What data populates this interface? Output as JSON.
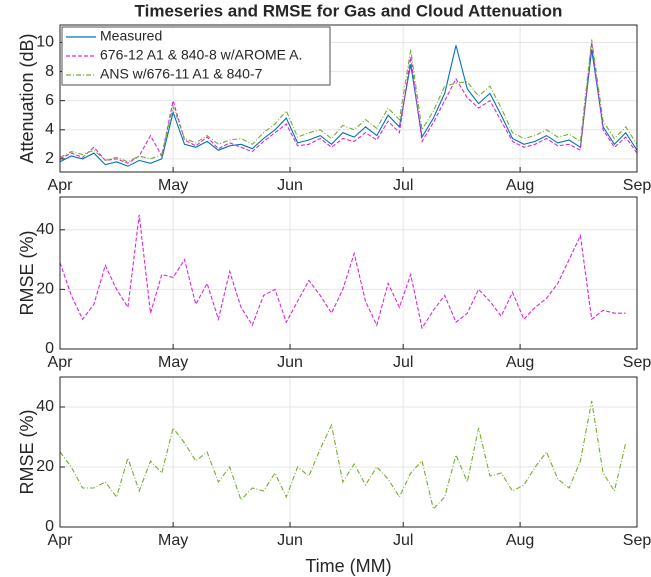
{
  "chart_data": [
    {
      "type": "line",
      "title": "Timeseries and RMSE for Gas and Cloud Attenuation",
      "y_label": "Attenuation (dB)",
      "xlim": [
        0,
        153
      ],
      "xticks": [
        {
          "value": 0,
          "label": "Apr"
        },
        {
          "value": 30,
          "label": "May"
        },
        {
          "value": 61,
          "label": "Jun"
        },
        {
          "value": 91,
          "label": "Jul"
        },
        {
          "value": 122,
          "label": "Aug"
        },
        {
          "value": 153,
          "label": "Sep"
        }
      ],
      "ylim": [
        1.1,
        11.2
      ],
      "yticks": [
        2,
        4,
        6,
        8,
        10
      ],
      "grid": true,
      "legend": "upper-left",
      "x": [
        0,
        3,
        6,
        9,
        12,
        15,
        18,
        21,
        24,
        27,
        30,
        33,
        36,
        39,
        42,
        45,
        48,
        51,
        54,
        57,
        60,
        63,
        66,
        69,
        72,
        75,
        78,
        81,
        84,
        87,
        90,
        93,
        96,
        99,
        102,
        105,
        108,
        111,
        114,
        117,
        120,
        123,
        126,
        129,
        132,
        135,
        138,
        141,
        144,
        147,
        150,
        153
      ],
      "series": [
        {
          "name": "Measured",
          "color": "#0072bd",
          "dash": "solid",
          "values": [
            1.8,
            2.2,
            2.0,
            2.4,
            1.6,
            1.8,
            1.5,
            1.9,
            1.7,
            2.0,
            5.2,
            3.0,
            2.8,
            3.2,
            2.6,
            2.9,
            3.0,
            2.7,
            3.4,
            4.0,
            4.8,
            3.1,
            3.3,
            3.6,
            3.0,
            3.8,
            3.5,
            4.2,
            3.6,
            5.0,
            4.2,
            8.5,
            3.5,
            4.8,
            6.5,
            9.8,
            6.8,
            5.8,
            6.5,
            5.0,
            3.4,
            3.0,
            3.2,
            3.6,
            3.1,
            3.3,
            2.8,
            9.5,
            4.2,
            3.0,
            3.8,
            2.6
          ]
        },
        {
          "name": "676-12 A1 & 840-8 w/AROME A.",
          "color": "#d926d9",
          "dash": "dashed",
          "values": [
            2.0,
            2.4,
            2.1,
            2.8,
            1.9,
            2.0,
            1.7,
            2.2,
            3.6,
            2.2,
            6.0,
            3.3,
            2.9,
            3.5,
            2.7,
            3.1,
            2.8,
            2.5,
            3.2,
            3.8,
            4.4,
            2.9,
            3.0,
            3.4,
            2.8,
            3.4,
            3.2,
            3.8,
            3.3,
            4.6,
            3.8,
            9.0,
            3.2,
            4.5,
            6.0,
            7.5,
            6.2,
            5.5,
            6.0,
            4.6,
            3.2,
            2.8,
            3.0,
            3.4,
            2.9,
            3.0,
            2.6,
            10.0,
            4.0,
            2.8,
            3.5,
            2.4
          ]
        },
        {
          "name": "ANS w/676-11 A1 & 840-7",
          "color": "#77ac30",
          "dash": "dashdot",
          "values": [
            2.1,
            2.5,
            2.3,
            2.6,
            1.9,
            2.1,
            1.8,
            2.2,
            2.0,
            2.3,
            5.6,
            3.4,
            3.1,
            3.6,
            3.0,
            3.3,
            3.4,
            3.0,
            3.8,
            4.4,
            5.3,
            3.5,
            3.8,
            4.0,
            3.4,
            4.3,
            4.0,
            4.7,
            4.1,
            5.5,
            4.7,
            9.5,
            4.0,
            5.3,
            7.0,
            7.2,
            7.3,
            6.3,
            7.0,
            5.5,
            3.8,
            3.4,
            3.6,
            4.0,
            3.5,
            3.7,
            3.2,
            10.2,
            4.6,
            3.4,
            4.2,
            3.0
          ]
        }
      ]
    },
    {
      "type": "line",
      "y_label": "RMSE (%)",
      "xlim": [
        0,
        153
      ],
      "xticks": [
        {
          "value": 0,
          "label": "Apr"
        },
        {
          "value": 30,
          "label": "May"
        },
        {
          "value": 61,
          "label": "Jun"
        },
        {
          "value": 91,
          "label": "Jul"
        },
        {
          "value": 122,
          "label": "Aug"
        },
        {
          "value": 153,
          "label": "Sep"
        }
      ],
      "ylim": [
        0,
        51
      ],
      "yticks": [
        0,
        20,
        40
      ],
      "grid": true,
      "x": [
        0,
        3,
        6,
        9,
        12,
        15,
        18,
        21,
        24,
        27,
        30,
        33,
        36,
        39,
        42,
        45,
        48,
        51,
        54,
        57,
        60,
        63,
        66,
        69,
        72,
        75,
        78,
        81,
        84,
        87,
        90,
        93,
        96,
        99,
        102,
        105,
        108,
        111,
        114,
        117,
        120,
        123,
        126,
        129,
        132,
        135,
        138,
        141,
        144,
        147,
        150
      ],
      "series": [
        {
          "name": "676-12 A1 & 840-8 w/AROME A.",
          "color": "#d926d9",
          "dash": "dashed",
          "values": [
            29,
            18,
            10,
            15,
            28,
            20,
            14,
            45,
            12,
            25,
            24,
            30,
            15,
            22,
            10,
            26,
            14,
            8,
            18,
            20,
            9,
            16,
            23,
            18,
            12,
            20,
            32,
            16,
            8,
            22,
            14,
            25,
            7,
            13,
            18,
            9,
            12,
            20,
            16,
            11,
            19,
            10,
            14,
            17,
            22,
            30,
            38,
            10,
            13,
            12,
            12
          ]
        }
      ]
    },
    {
      "type": "line",
      "y_label": "RMSE (%)",
      "x_label": "Time (MM)",
      "xlim": [
        0,
        153
      ],
      "xticks": [
        {
          "value": 0,
          "label": "Apr"
        },
        {
          "value": 30,
          "label": "May"
        },
        {
          "value": 61,
          "label": "Jun"
        },
        {
          "value": 91,
          "label": "Jul"
        },
        {
          "value": 122,
          "label": "Aug"
        },
        {
          "value": 153,
          "label": "Sep"
        }
      ],
      "ylim": [
        0,
        50
      ],
      "yticks": [
        0,
        20,
        40
      ],
      "grid": true,
      "x": [
        0,
        3,
        6,
        9,
        12,
        15,
        18,
        21,
        24,
        27,
        30,
        33,
        36,
        39,
        42,
        45,
        48,
        51,
        54,
        57,
        60,
        63,
        66,
        69,
        72,
        75,
        78,
        81,
        84,
        87,
        90,
        93,
        96,
        99,
        102,
        105,
        108,
        111,
        114,
        117,
        120,
        123,
        126,
        129,
        132,
        135,
        138,
        141,
        144,
        147,
        150
      ],
      "series": [
        {
          "name": "ANS w/676-11 A1 & 840-7",
          "color": "#77ac30",
          "dash": "dashdot",
          "values": [
            25,
            20,
            13,
            13,
            15,
            10,
            23,
            12,
            22,
            18,
            33,
            28,
            22,
            25,
            15,
            20,
            9,
            13,
            12,
            18,
            10,
            20,
            17,
            26,
            34,
            15,
            21,
            14,
            20,
            16,
            10,
            18,
            22,
            6,
            10,
            24,
            15,
            33,
            17,
            18,
            12,
            14,
            20,
            25,
            16,
            13,
            22,
            42,
            18,
            12,
            28
          ]
        }
      ]
    }
  ]
}
